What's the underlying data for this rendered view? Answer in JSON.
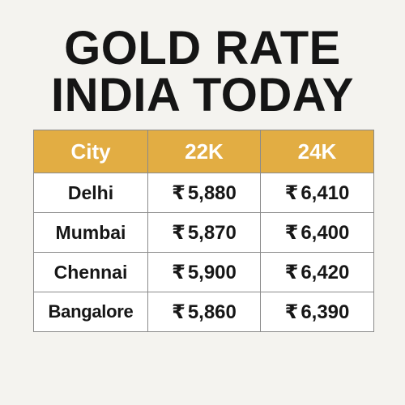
{
  "title": {
    "line1": "GOLD RATE",
    "line2": "INDIA TODAY"
  },
  "table": {
    "currency_symbol": "₹",
    "headers": [
      "City",
      "22K",
      "24K"
    ],
    "rows": [
      {
        "city": "Delhi",
        "k22": "5,880",
        "k24": "6,410"
      },
      {
        "city": "Mumbai",
        "k22": "5,870",
        "k24": "6,400"
      },
      {
        "city": "Chennai",
        "k22": "5,900",
        "k24": "6,420"
      },
      {
        "city": "Bangalore",
        "k22": "5,860",
        "k24": "6,390"
      }
    ]
  },
  "colors": {
    "header_background": "#e2ad43",
    "header_text": "#ffffff",
    "page_background": "#f4f3ef",
    "text": "#151515"
  }
}
